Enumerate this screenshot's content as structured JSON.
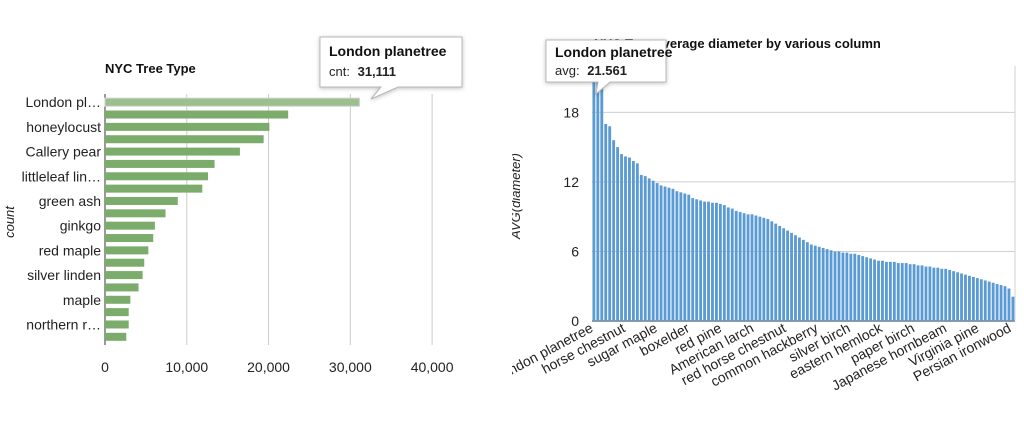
{
  "chart_data": [
    {
      "type": "bar",
      "orientation": "horizontal",
      "title": "NYC Tree Type",
      "xlabel": "",
      "ylabel": "count",
      "xlim": [
        0,
        45000
      ],
      "x_ticks": [
        "0",
        "10,000",
        "20,000",
        "30,000",
        "40,000"
      ],
      "x_tick_values": [
        0,
        10000,
        20000,
        30000,
        40000
      ],
      "grid": true,
      "bar_color": "#7cac6c",
      "highlight_color": "#9bbf8e",
      "category_labels": [
        "London pl…",
        "honeylocust",
        "Callery pear",
        "littleleaf lin…",
        "green ash",
        "ginkgo",
        "red maple",
        "silver linden",
        "maple",
        "northern r…"
      ],
      "values": [
        31111,
        22400,
        20100,
        19400,
        16500,
        13400,
        12600,
        11900,
        8900,
        7400,
        6100,
        5900,
        5300,
        4800,
        4600,
        4100,
        3100,
        2900,
        2900,
        2600
      ],
      "tooltip": {
        "title": "London planetree",
        "label": "cnt:",
        "value": "31,111"
      }
    },
    {
      "type": "bar",
      "title": "NYC Tree average diameter by various column",
      "xlabel": "",
      "ylabel": "AVG(diameter)",
      "ylim": [
        0,
        22
      ],
      "y_ticks": [
        "0",
        "6",
        "12",
        "18"
      ],
      "y_tick_values": [
        0,
        6,
        12,
        18
      ],
      "grid": true,
      "bar_color": "#5b9bd5",
      "category_labels": [
        "London planetree",
        "horse chestnut",
        "sugar maple",
        "boxelder",
        "red pine",
        "American larch",
        "red horse chestnut",
        "common hackberry",
        "silver birch",
        "eastern hemlock",
        "paper birch",
        "Japanese hornbeam",
        "Virginia pine",
        "Persian ironwood"
      ],
      "values": [
        21.561,
        21.0,
        20.3,
        17.0,
        16.8,
        15.6,
        15.0,
        14.4,
        14.2,
        14.1,
        13.8,
        13.6,
        12.6,
        12.5,
        12.3,
        12.1,
        11.9,
        11.7,
        11.6,
        11.5,
        11.4,
        11.2,
        11.1,
        11.0,
        10.9,
        10.6,
        10.5,
        10.4,
        10.3,
        10.3,
        10.2,
        10.2,
        10.1,
        10.0,
        9.8,
        9.7,
        9.5,
        9.4,
        9.3,
        9.2,
        9.2,
        9.1,
        9.0,
        8.9,
        8.8,
        8.6,
        8.4,
        8.2,
        8.0,
        7.8,
        7.6,
        7.4,
        7.2,
        7.0,
        6.8,
        6.6,
        6.5,
        6.4,
        6.3,
        6.2,
        6.1,
        6.0,
        6.0,
        5.9,
        5.9,
        5.8,
        5.8,
        5.7,
        5.6,
        5.5,
        5.4,
        5.3,
        5.2,
        5.2,
        5.1,
        5.1,
        5.1,
        5.0,
        5.0,
        5.0,
        4.9,
        4.9,
        4.8,
        4.8,
        4.7,
        4.7,
        4.6,
        4.6,
        4.5,
        4.5,
        4.4,
        4.3,
        4.2,
        4.1,
        4.0,
        3.9,
        3.8,
        3.7,
        3.6,
        3.5,
        3.4,
        3.3,
        3.2,
        3.1,
        3.0,
        2.8,
        2.1
      ],
      "tooltip": {
        "title": "London planetree",
        "label": "avg:",
        "value": "21.561"
      }
    }
  ]
}
